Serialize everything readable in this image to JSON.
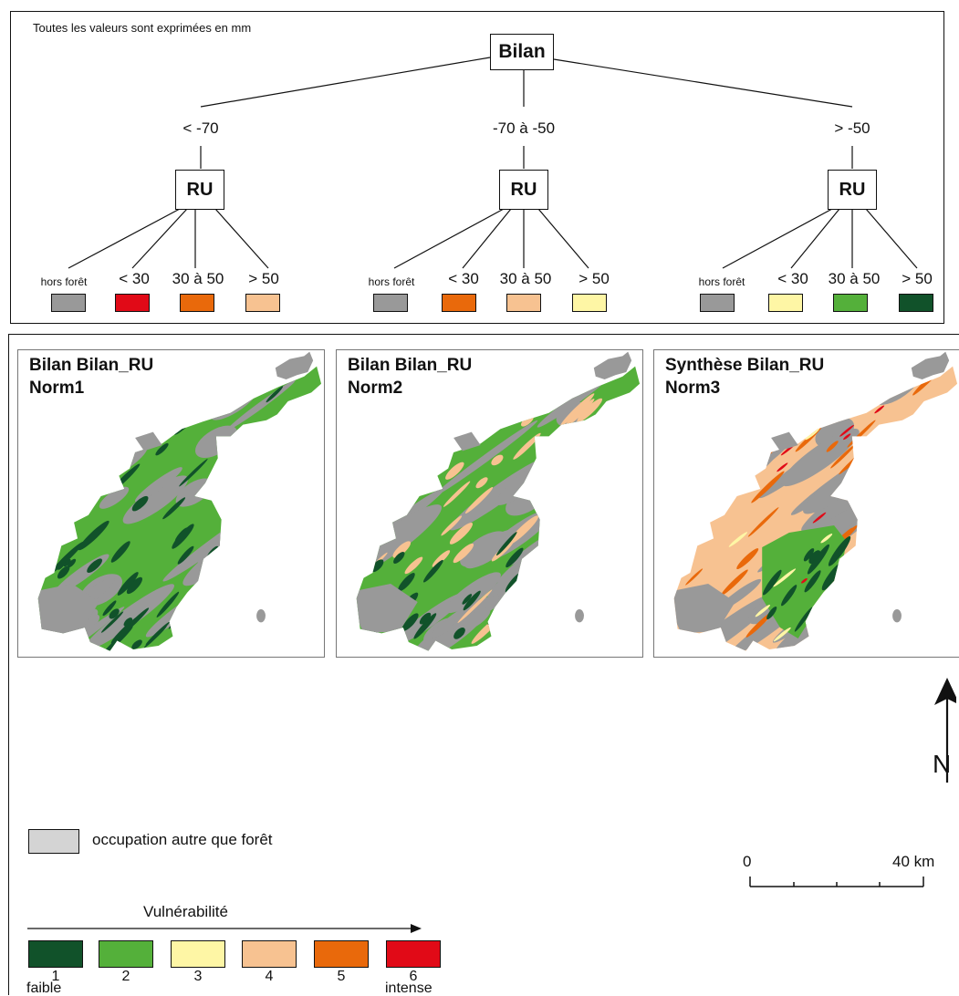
{
  "tree": {
    "note": "Toutes les valeurs sont exprimées en mm",
    "root_label": "Bilan",
    "branches": [
      {
        "label": "< -70",
        "node_label": "RU",
        "leaves": [
          {
            "label": "hors forêt",
            "color": "#999999"
          },
          {
            "label": "< 30",
            "color": "#e10a17"
          },
          {
            "label": "30 à 50",
            "color": "#e9690b"
          },
          {
            "label": "> 50",
            "color": "#f7c291"
          }
        ]
      },
      {
        "label": "-70 à -50",
        "node_label": "RU",
        "leaves": [
          {
            "label": "hors forêt",
            "color": "#999999"
          },
          {
            "label": "< 30",
            "color": "#e9690b"
          },
          {
            "label": "30 à 50",
            "color": "#f7c291"
          },
          {
            "label": "> 50",
            "color": "#fef6a5"
          }
        ]
      },
      {
        "label": "> -50",
        "node_label": "RU",
        "leaves": [
          {
            "label": "hors forêt",
            "color": "#999999"
          },
          {
            "label": "< 30",
            "color": "#fef6a5"
          },
          {
            "label": "30 à 50",
            "color": "#54b03a"
          },
          {
            "label": "> 50",
            "color": "#11522a"
          }
        ]
      }
    ]
  },
  "maps": [
    {
      "title_line1": "Bilan Bilan_RU",
      "title_line2": "Norm1",
      "base_color": "#54b03a",
      "accent_color": "#11522a",
      "gray_color": "#999999"
    },
    {
      "title_line1": "Bilan Bilan_RU",
      "title_line2": "Norm2",
      "base_color": "#54b03a",
      "accent_color": "#f7c291",
      "gray_color": "#999999"
    },
    {
      "title_line1": "Synthèse Bilan_RU",
      "title_line2": "Norm3",
      "base_color": "#f7c291",
      "accent_color": "#e9690b",
      "gray_color": "#999999"
    }
  ],
  "legend": {
    "non_forest_label": "occupation autre que forêt",
    "non_forest_color": "#d4d4d4",
    "vulnerability_title": "Vulnérabilité",
    "classes": [
      {
        "label": "1",
        "color": "#11522a"
      },
      {
        "label": "2",
        "color": "#54b03a"
      },
      {
        "label": "3",
        "color": "#fef6a5"
      },
      {
        "label": "4",
        "color": "#f7c291"
      },
      {
        "label": "5",
        "color": "#e9690b"
      },
      {
        "label": "6",
        "color": "#e10a17"
      }
    ],
    "low_label": "faible",
    "high_label": "intense"
  },
  "scale": {
    "start_label": "0",
    "end_label": "40 km"
  },
  "north_label": "N",
  "icons": {
    "north_arrow": "north-arrow-icon"
  }
}
